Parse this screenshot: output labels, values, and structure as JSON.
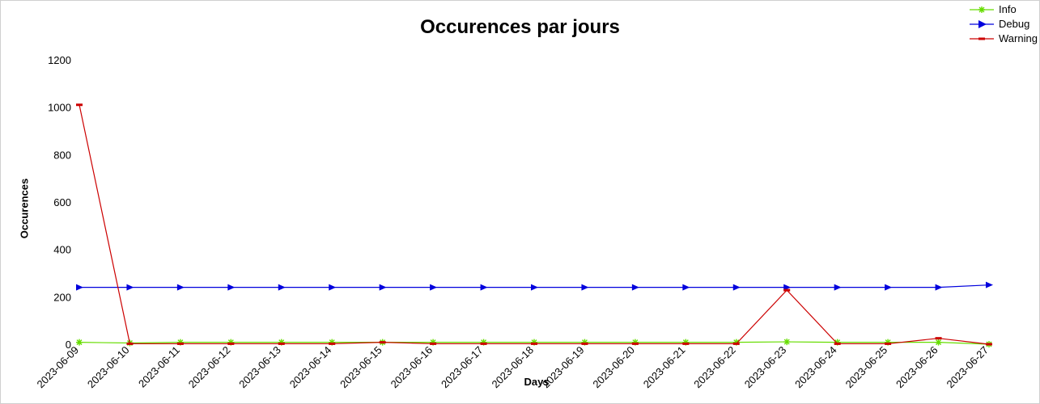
{
  "chart_data": {
    "type": "line",
    "title": "Occurences par jours",
    "xlabel": "Days",
    "ylabel": "Occurences",
    "ylim": [
      0,
      1200
    ],
    "yticks": [
      0,
      200,
      400,
      600,
      800,
      1000,
      1200
    ],
    "grid": false,
    "legend_position": "top-right",
    "categories": [
      "2023-06-09",
      "2023-06-10",
      "2023-06-11",
      "2023-06-12",
      "2023-06-13",
      "2023-06-14",
      "2023-06-15",
      "2023-06-16",
      "2023-06-17",
      "2023-06-18",
      "2023-06-19",
      "2023-06-20",
      "2023-06-21",
      "2023-06-22",
      "2023-06-23",
      "2023-06-24",
      "2023-06-25",
      "2023-06-26",
      "2023-06-27"
    ],
    "series": [
      {
        "name": "Info",
        "color": "#66dd00",
        "marker": "star",
        "values": [
          8,
          5,
          8,
          8,
          8,
          8,
          8,
          8,
          8,
          8,
          8,
          8,
          8,
          8,
          10,
          8,
          8,
          8,
          0
        ]
      },
      {
        "name": "Debug",
        "color": "#0000dd",
        "marker": "triangle-right",
        "values": [
          240,
          240,
          240,
          240,
          240,
          240,
          240,
          240,
          240,
          240,
          240,
          240,
          240,
          240,
          240,
          240,
          240,
          240,
          250
        ]
      },
      {
        "name": "Warning",
        "color": "#cc0000",
        "marker": "dash",
        "values": [
          1010,
          2,
          2,
          2,
          2,
          2,
          8,
          2,
          2,
          2,
          2,
          2,
          2,
          2,
          228,
          2,
          2,
          25,
          0
        ]
      }
    ]
  }
}
